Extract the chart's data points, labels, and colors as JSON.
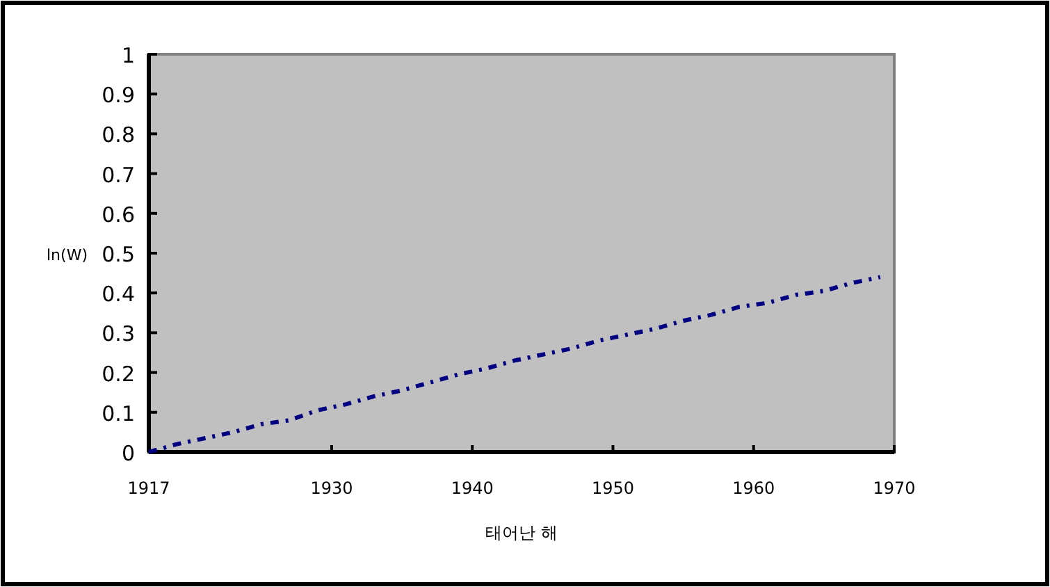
{
  "chart_data": {
    "type": "line",
    "xlabel": "태어난 해",
    "ylabel": "ln(W)",
    "x": [
      1917,
      1919,
      1921,
      1923,
      1925,
      1927,
      1929,
      1931,
      1933,
      1935,
      1937,
      1939,
      1941,
      1943,
      1945,
      1947,
      1949,
      1951,
      1953,
      1955,
      1957,
      1959,
      1961,
      1963,
      1965,
      1967,
      1969
    ],
    "series": [
      {
        "color": "#000080",
        "values": [
          0.0,
          0.02,
          0.035,
          0.05,
          0.07,
          0.08,
          0.105,
          0.12,
          0.14,
          0.155,
          0.175,
          0.195,
          0.21,
          0.23,
          0.245,
          0.26,
          0.28,
          0.295,
          0.31,
          0.33,
          0.345,
          0.365,
          0.375,
          0.395,
          0.405,
          0.425,
          0.44
        ]
      }
    ],
    "xlim": [
      1917,
      1970
    ],
    "xticks": [
      1917,
      1930,
      1940,
      1950,
      1960,
      1970
    ],
    "ylim": [
      0,
      1
    ],
    "yticks": [
      0,
      0.1,
      0.2,
      0.3,
      0.4,
      0.5,
      0.6,
      0.7,
      0.8,
      0.9,
      1
    ],
    "line_style": "dashed",
    "grid": false
  }
}
